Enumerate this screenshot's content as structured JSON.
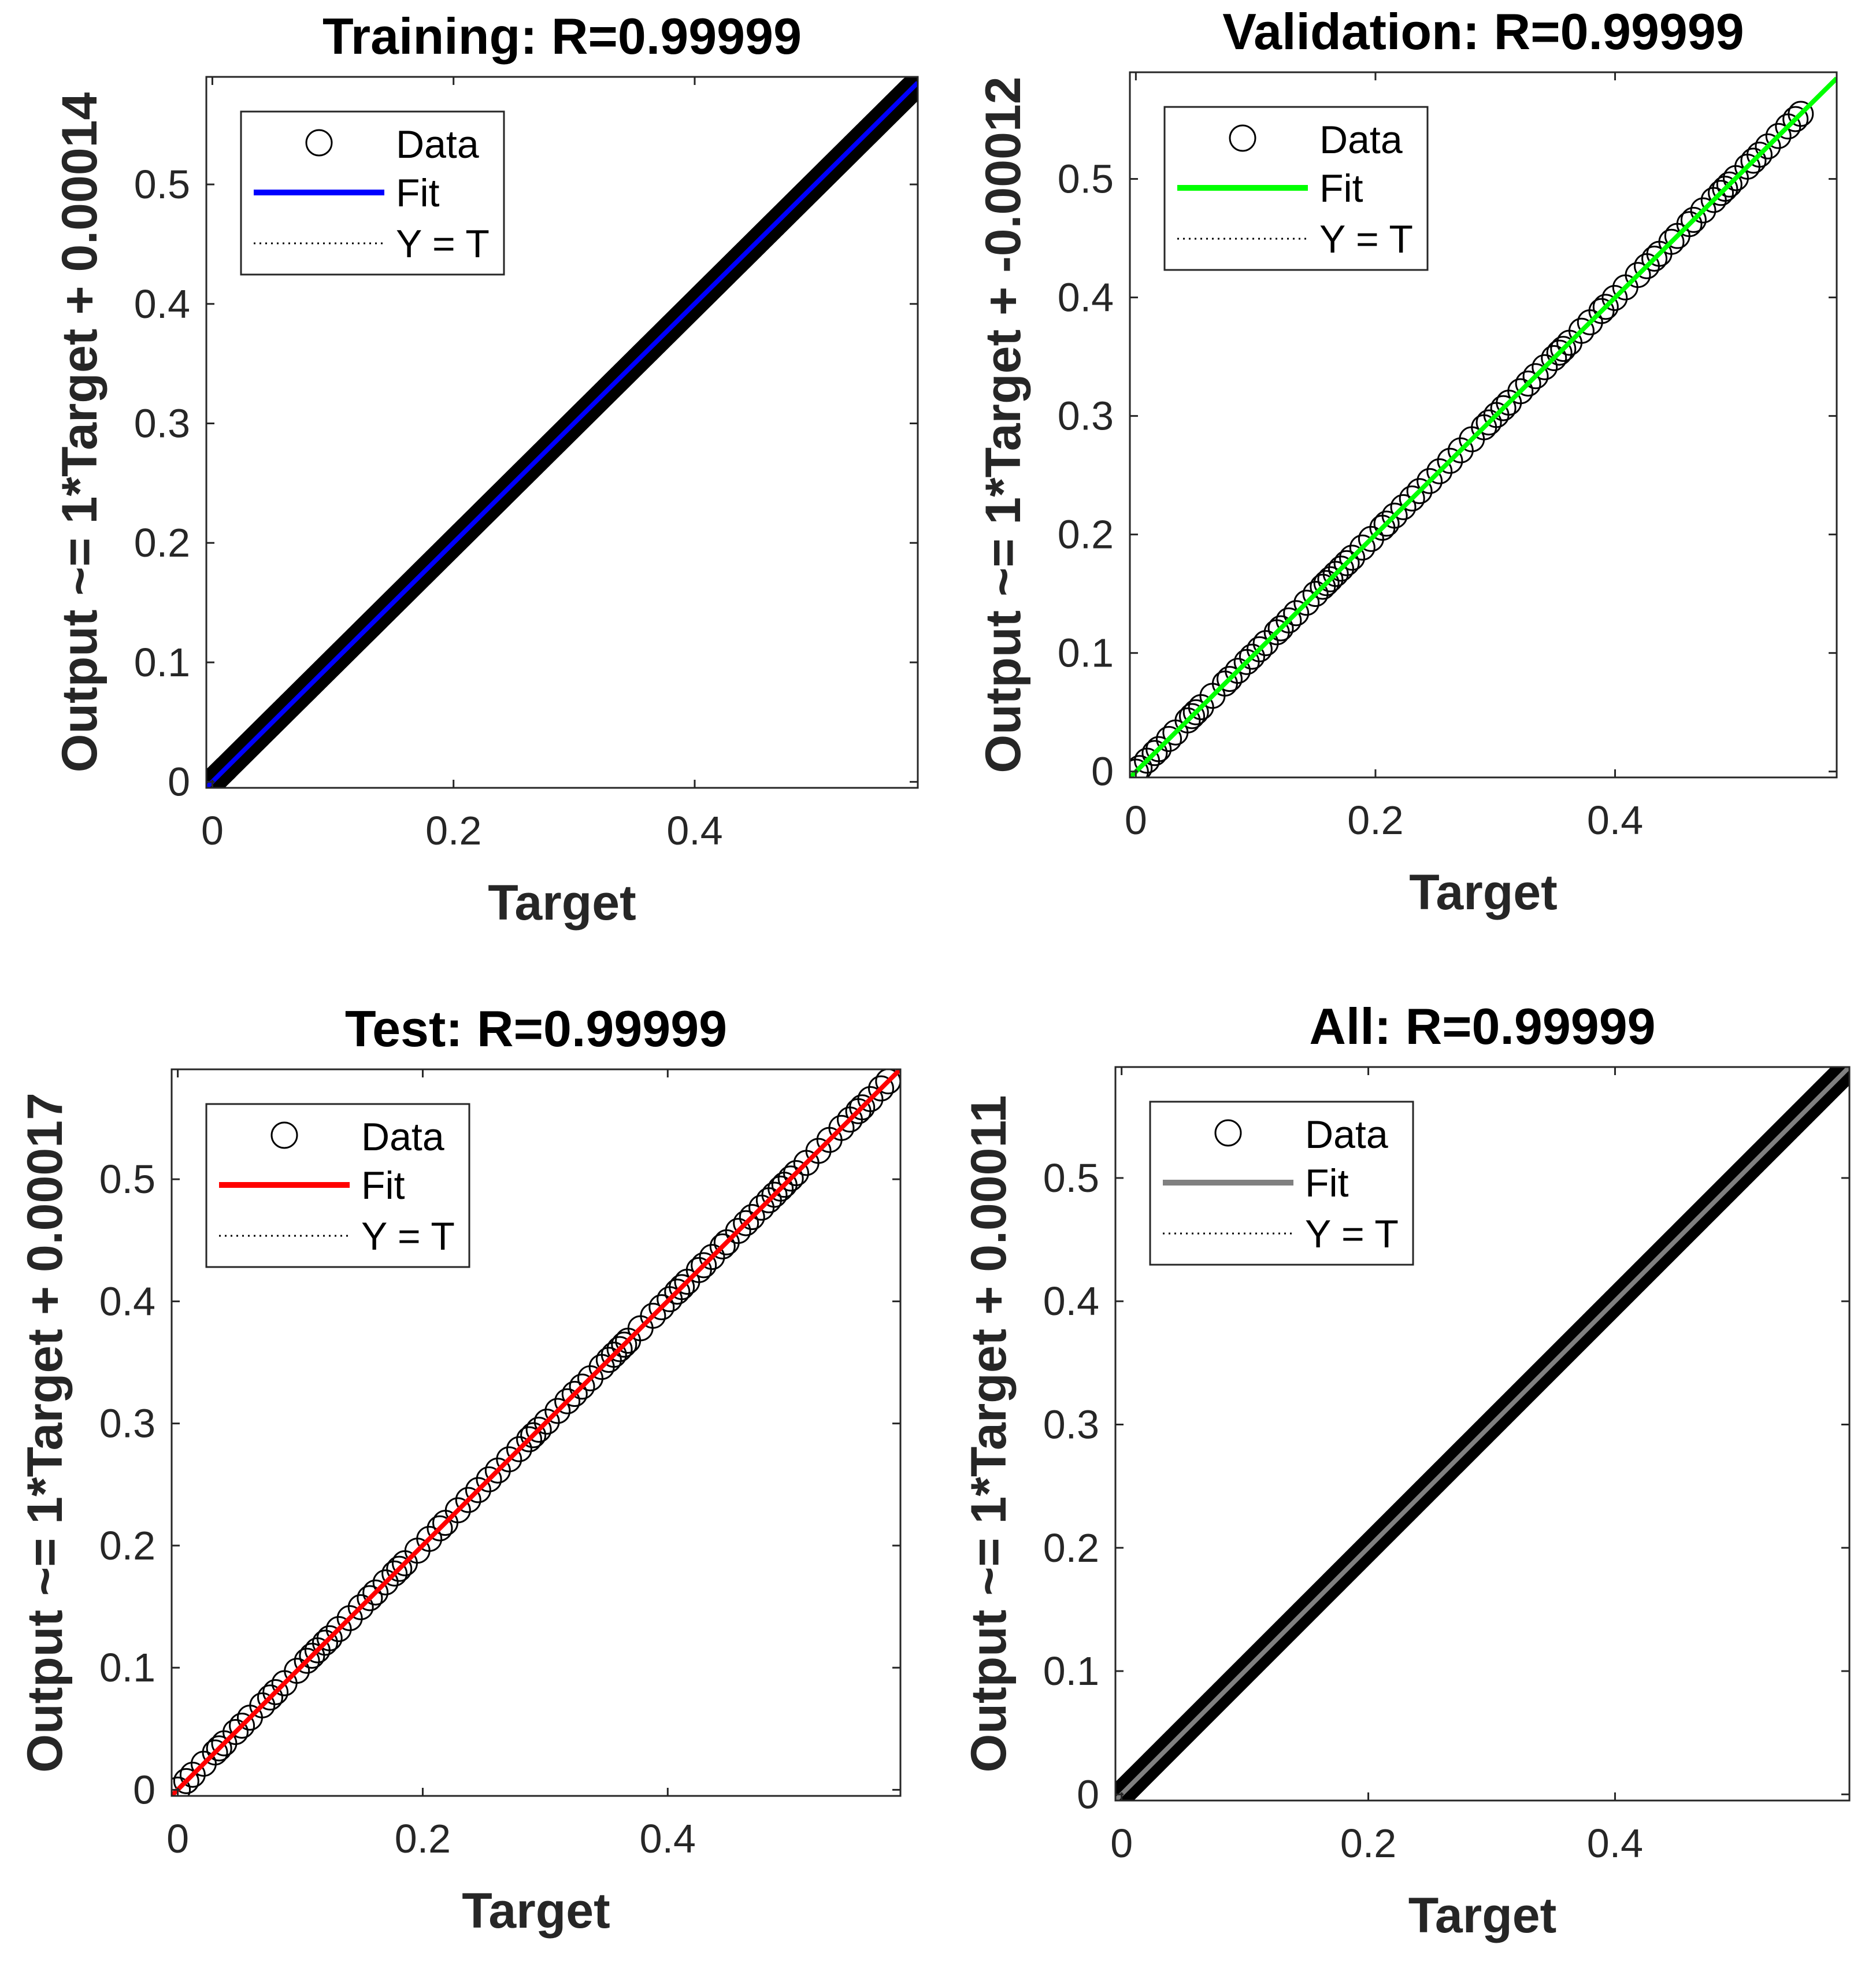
{
  "chart_data": [
    {
      "type": "scatter",
      "id": "training",
      "title": "Training: R=0.99999",
      "xlabel": "Target",
      "ylabel": "Output ~= 1*Target + 0.00014",
      "xlim": [
        -0.005,
        0.585
      ],
      "ylim": [
        -0.005,
        0.59
      ],
      "xticks": [
        0,
        0.2,
        0.4
      ],
      "yticks": [
        0,
        0.1,
        0.2,
        0.3,
        0.4,
        0.5
      ],
      "fit": {
        "slope": 1,
        "intercept": 0.00014,
        "color": "#0000ff"
      },
      "data_range": [
        0,
        0.58
      ],
      "density": "dense",
      "legend": [
        "Data",
        "Fit",
        "Y = T"
      ],
      "legend_loc": "top-left"
    },
    {
      "type": "scatter",
      "id": "validation",
      "title": "Validation: R=0.99999",
      "xlabel": "Target",
      "ylabel": "Output ~= 1*Target + -0.00012",
      "xlim": [
        -0.005,
        0.585
      ],
      "ylim": [
        -0.005,
        0.59
      ],
      "xticks": [
        0,
        0.2,
        0.4
      ],
      "yticks": [
        0,
        0.1,
        0.2,
        0.3,
        0.4,
        0.5
      ],
      "fit": {
        "slope": 1,
        "intercept": -0.00012,
        "color": "#00ff00"
      },
      "data_range": [
        0,
        0.555
      ],
      "density": "sparse",
      "legend": [
        "Data",
        "Fit",
        "Y = T"
      ],
      "legend_loc": "top-left"
    },
    {
      "type": "scatter",
      "id": "test",
      "title": "Test: R=0.99999",
      "xlabel": "Target",
      "ylabel": "Output ~= 1*Target + 0.00017",
      "xlim": [
        -0.005,
        0.59
      ],
      "ylim": [
        -0.005,
        0.59
      ],
      "xticks": [
        0,
        0.2,
        0.4
      ],
      "yticks": [
        0,
        0.1,
        0.2,
        0.3,
        0.4,
        0.5
      ],
      "fit": {
        "slope": 1,
        "intercept": 0.00017,
        "color": "#ff0000"
      },
      "data_range": [
        0,
        0.58
      ],
      "density": "sparse",
      "legend": [
        "Data",
        "Fit",
        "Y = T"
      ],
      "legend_loc": "top-left"
    },
    {
      "type": "scatter",
      "id": "all",
      "title": "All: R=0.99999",
      "xlabel": "Target",
      "ylabel": "Output ~= 1*Target + 0.00011",
      "xlim": [
        -0.005,
        0.59
      ],
      "ylim": [
        -0.005,
        0.59
      ],
      "xticks": [
        0,
        0.2,
        0.4
      ],
      "yticks": [
        0,
        0.1,
        0.2,
        0.3,
        0.4,
        0.5
      ],
      "fit": {
        "slope": 1,
        "intercept": 0.00011,
        "color": "#808080"
      },
      "data_range": [
        0,
        0.59
      ],
      "density": "dense",
      "legend": [
        "Data",
        "Fit",
        "Y = T"
      ],
      "legend_loc": "top-left"
    }
  ]
}
